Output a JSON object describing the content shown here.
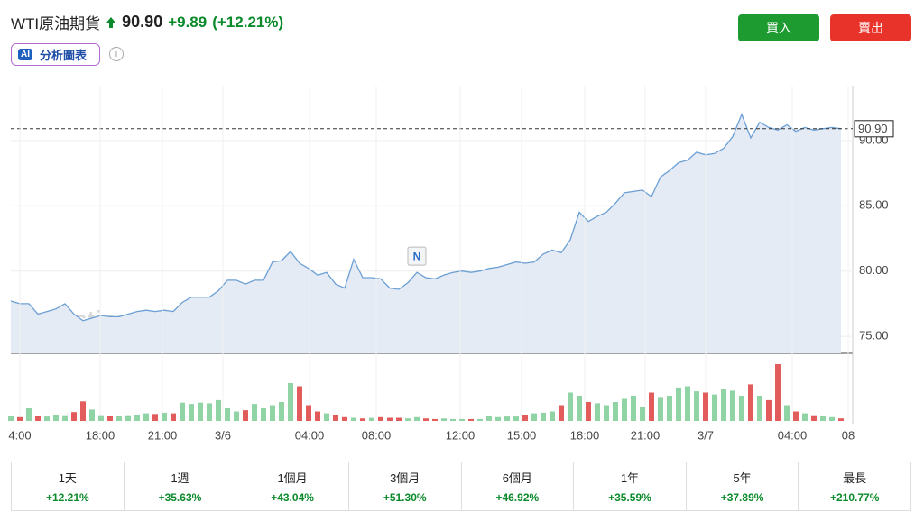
{
  "header": {
    "title": "WTI原油期貨",
    "price": "90.90",
    "change": "+9.89",
    "change_pct": "(+12.21%)",
    "badge": "分析圖表"
  },
  "buttons": {
    "buy": "買入",
    "sell": "賣出"
  },
  "chart_data": [
    {
      "type": "area",
      "watermark": "Investing.com",
      "news_marker": "N",
      "color": "#6b9fd4",
      "fill": "#e4ebf4",
      "values": [
        77.7,
        77.5,
        77.5,
        76.7,
        76.9,
        77.1,
        77.5,
        76.7,
        76.2,
        76.4,
        76.6,
        76.5,
        76.5,
        76.7,
        76.9,
        77.0,
        76.9,
        77.0,
        76.9,
        77.6,
        78.0,
        78.0,
        78.0,
        78.5,
        79.3,
        79.3,
        79.0,
        79.3,
        79.3,
        80.7,
        80.8,
        81.5,
        80.6,
        80.2,
        79.7,
        79.9,
        79.0,
        78.7,
        80.9,
        79.5,
        79.5,
        79.4,
        78.7,
        78.6,
        79.1,
        79.9,
        79.5,
        79.4,
        79.7,
        79.9,
        80.0,
        79.9,
        80.0,
        80.2,
        80.3,
        80.5,
        80.7,
        80.6,
        80.7,
        81.3,
        81.6,
        81.4,
        82.4,
        84.5,
        83.8,
        84.2,
        84.5,
        85.2,
        86.0,
        86.1,
        86.2,
        85.7,
        87.2,
        87.7,
        88.3,
        88.5,
        89.1,
        88.9,
        89.0,
        89.4,
        90.3,
        92.0,
        90.2,
        91.4,
        91.0,
        90.8,
        91.2,
        90.7,
        91.0,
        90.8,
        90.9,
        91.0,
        90.9
      ],
      "xlim": [
        0,
        93.3
      ],
      "ylim": [
        73.7,
        94.2
      ],
      "yticks": [
        {
          "value": 75,
          "label": "75.00"
        },
        {
          "value": 80,
          "label": "80.00"
        },
        {
          "value": 85,
          "label": "85.00"
        },
        {
          "value": 90,
          "label": "90.00"
        }
      ],
      "last_value": {
        "value": 90.9,
        "label": "90.90"
      },
      "grid": true
    },
    {
      "type": "bar",
      "up_color": "#90d3a4",
      "down_color": "#e25c5c",
      "values": [
        8,
        6,
        20,
        8,
        7,
        10,
        9,
        14,
        31,
        18,
        9,
        8,
        8,
        9,
        10,
        12,
        11,
        13,
        12,
        29,
        27,
        29,
        28,
        33,
        20,
        15,
        17,
        27,
        20,
        25,
        30,
        60,
        55,
        25,
        15,
        12,
        10,
        6,
        5,
        4,
        5,
        6,
        5,
        5,
        4,
        6,
        4,
        3,
        4,
        3,
        3,
        3,
        3,
        8,
        6,
        7,
        7,
        10,
        12,
        13,
        15,
        25,
        45,
        40,
        30,
        28,
        25,
        30,
        35,
        40,
        22,
        45,
        38,
        40,
        53,
        55,
        47,
        45,
        42,
        50,
        48,
        40,
        58,
        40,
        33,
        90,
        25,
        15,
        12,
        9,
        8,
        6,
        4
      ],
      "xlim": [
        0,
        93.3
      ],
      "ylim": [
        0,
        100
      ],
      "xticks": [
        {
          "value": 1.0,
          "label": "4:00"
        },
        {
          "value": 9.9,
          "label": "18:00"
        },
        {
          "value": 16.8,
          "label": "21:00"
        },
        {
          "value": 23.5,
          "label": "3/6"
        },
        {
          "value": 33.1,
          "label": "04:00"
        },
        {
          "value": 40.5,
          "label": "08:00"
        },
        {
          "value": 49.8,
          "label": "12:00"
        },
        {
          "value": 56.6,
          "label": "15:00"
        },
        {
          "value": 63.6,
          "label": "18:00"
        },
        {
          "value": 70.3,
          "label": "21:00"
        },
        {
          "value": 77.0,
          "label": "3/7"
        },
        {
          "value": 86.6,
          "label": "04:00"
        },
        {
          "value": 92.8,
          "label": "08"
        }
      ]
    }
  ],
  "performance": [
    {
      "period": "1天",
      "change": "+12.21%"
    },
    {
      "period": "1週",
      "change": "+35.63%"
    },
    {
      "period": "1個月",
      "change": "+43.04%"
    },
    {
      "period": "3個月",
      "change": "+51.30%"
    },
    {
      "period": "6個月",
      "change": "+46.92%"
    },
    {
      "period": "1年",
      "change": "+35.59%"
    },
    {
      "period": "5年",
      "change": "+37.89%"
    },
    {
      "period": "最長",
      "change": "+210.77%"
    }
  ]
}
